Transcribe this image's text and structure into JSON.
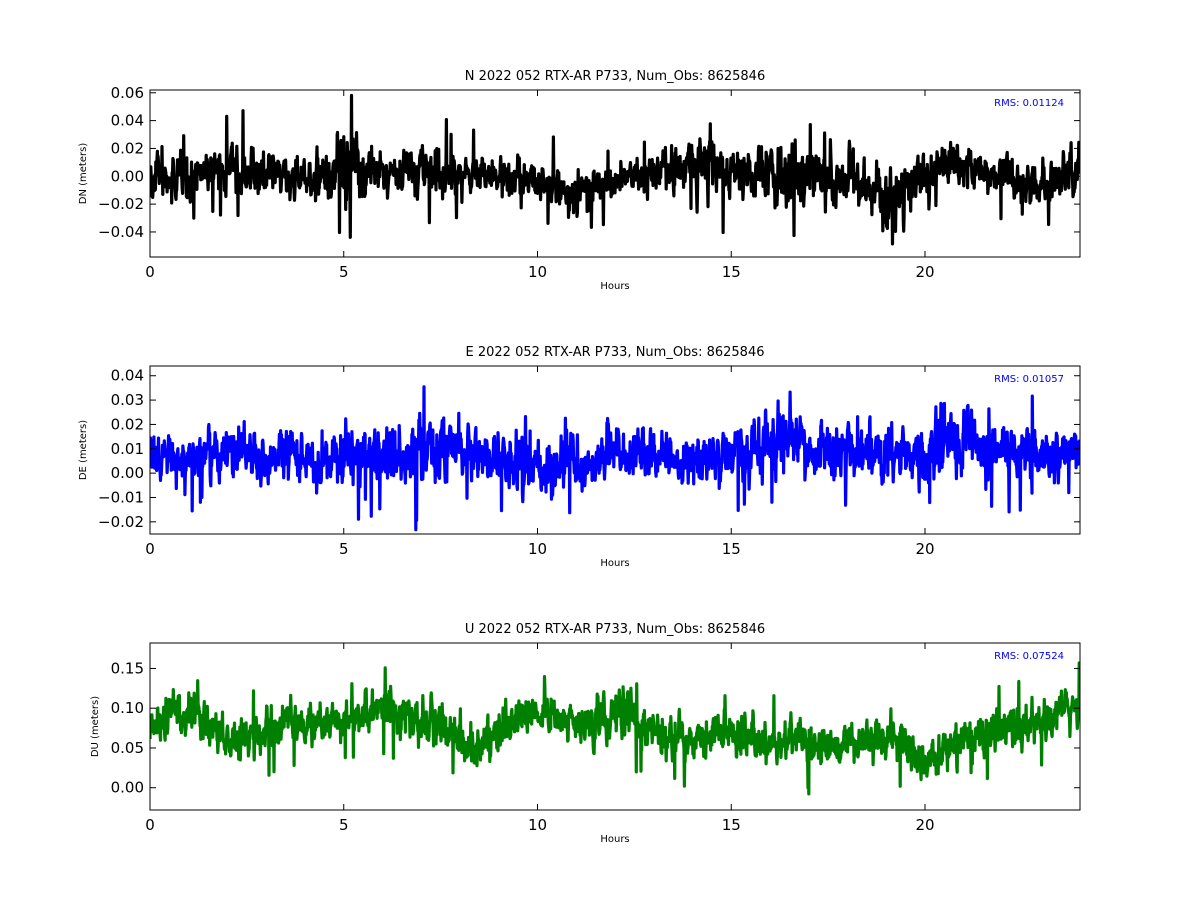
{
  "chart_data": [
    {
      "type": "line",
      "title": "N 2022 052 RTX-AR  P733, Num_Obs: 8625846",
      "xlabel": "Hours",
      "ylabel": "DN (meters)",
      "xlim": [
        0,
        24
      ],
      "ylim": [
        -0.058,
        0.062
      ],
      "xticks": [
        0,
        5,
        10,
        15,
        20
      ],
      "yticks": [
        -0.04,
        -0.02,
        0.0,
        0.02,
        0.04,
        0.06
      ],
      "ytick_labels": [
        "−0.04",
        "−0.02",
        "0.00",
        "0.02",
        "0.04",
        "0.06"
      ],
      "annotation": "RMS:  0.01124",
      "annotation_color": "#0000ff",
      "series": [
        {
          "color": "#000000",
          "x": [
            0,
            0.5,
            1,
            1.5,
            2,
            2.5,
            3,
            3.5,
            4,
            4.5,
            5,
            5.5,
            6,
            6.5,
            7,
            7.5,
            8,
            8.5,
            9,
            9.5,
            10,
            10.5,
            11,
            11.5,
            12,
            12.5,
            13,
            13.5,
            14,
            14.5,
            15,
            15.5,
            16,
            16.5,
            17,
            17.5,
            18,
            18.5,
            19,
            19.5,
            20,
            20.5,
            21,
            21.5,
            22,
            22.5,
            23,
            23.5,
            24
          ],
          "center": [
            0.0,
            -0.003,
            0.0,
            0.004,
            0.006,
            0.006,
            0.002,
            -0.002,
            0.001,
            0.0,
            0.006,
            0.003,
            0.0,
            0.005,
            0.008,
            0.006,
            0.002,
            0.001,
            0.0,
            -0.002,
            -0.004,
            -0.008,
            -0.01,
            -0.008,
            -0.002,
            0.0,
            0.002,
            0.005,
            0.008,
            0.01,
            0.004,
            0.0,
            0.002,
            0.003,
            0.0,
            -0.002,
            -0.004,
            -0.006,
            -0.015,
            -0.01,
            0.0,
            0.012,
            0.008,
            0.002,
            0.003,
            -0.002,
            -0.006,
            0.0,
            0.004
          ],
          "spread": [
            0.022,
            0.02,
            0.02,
            0.022,
            0.025,
            0.024,
            0.02,
            0.02,
            0.018,
            0.024,
            0.038,
            0.032,
            0.02,
            0.022,
            0.026,
            0.024,
            0.02,
            0.02,
            0.018,
            0.018,
            0.02,
            0.022,
            0.022,
            0.02,
            0.018,
            0.018,
            0.02,
            0.022,
            0.024,
            0.035,
            0.024,
            0.022,
            0.035,
            0.036,
            0.026,
            0.024,
            0.022,
            0.026,
            0.034,
            0.03,
            0.024,
            0.026,
            0.024,
            0.02,
            0.02,
            0.02,
            0.022,
            0.02,
            0.02
          ]
        }
      ]
    },
    {
      "type": "line",
      "title": "E 2022 052 RTX-AR  P733, Num_Obs: 8625846",
      "xlabel": "Hours",
      "ylabel": "DE (meters)",
      "xlim": [
        0,
        24
      ],
      "ylim": [
        -0.025,
        0.044
      ],
      "xticks": [
        0,
        5,
        10,
        15,
        20
      ],
      "yticks": [
        -0.02,
        -0.01,
        0.0,
        0.01,
        0.02,
        0.03,
        0.04
      ],
      "ytick_labels": [
        "−0.02",
        "−0.01",
        "0.00",
        "0.01",
        "0.02",
        "0.03",
        "0.04"
      ],
      "annotation": "RMS:  0.01057",
      "annotation_color": "#0000ff",
      "series": [
        {
          "color": "#0000ff",
          "x": [
            0,
            0.5,
            1,
            1.5,
            2,
            2.5,
            3,
            3.5,
            4,
            4.5,
            5,
            5.5,
            6,
            6.5,
            7,
            7.5,
            8,
            8.5,
            9,
            9.5,
            10,
            10.5,
            11,
            11.5,
            12,
            12.5,
            13,
            13.5,
            14,
            14.5,
            15,
            15.5,
            16,
            16.5,
            17,
            17.5,
            18,
            18.5,
            19,
            19.5,
            20,
            20.5,
            21,
            21.5,
            22,
            22.5,
            23,
            23.5,
            24
          ],
          "center": [
            0.008,
            0.007,
            0.006,
            0.008,
            0.009,
            0.008,
            0.006,
            0.007,
            0.006,
            0.007,
            0.006,
            0.007,
            0.008,
            0.009,
            0.01,
            0.01,
            0.009,
            0.008,
            0.006,
            0.004,
            0.002,
            0.003,
            0.004,
            0.003,
            0.01,
            0.008,
            0.007,
            0.006,
            0.004,
            0.008,
            0.009,
            0.01,
            0.012,
            0.016,
            0.01,
            0.008,
            0.007,
            0.006,
            0.007,
            0.008,
            0.01,
            0.014,
            0.012,
            0.01,
            0.009,
            0.008,
            0.007,
            0.009,
            0.01
          ],
          "spread": [
            0.014,
            0.014,
            0.013,
            0.016,
            0.015,
            0.014,
            0.014,
            0.016,
            0.014,
            0.015,
            0.016,
            0.015,
            0.016,
            0.018,
            0.02,
            0.018,
            0.017,
            0.016,
            0.015,
            0.016,
            0.016,
            0.015,
            0.015,
            0.014,
            0.013,
            0.013,
            0.013,
            0.014,
            0.015,
            0.015,
            0.015,
            0.016,
            0.018,
            0.02,
            0.016,
            0.015,
            0.014,
            0.014,
            0.016,
            0.016,
            0.018,
            0.02,
            0.02,
            0.016,
            0.015,
            0.015,
            0.015,
            0.014,
            0.014
          ]
        }
      ]
    },
    {
      "type": "line",
      "title": "U 2022 052 RTX-AR  P733, Num_Obs: 8625846",
      "xlabel": "Hours",
      "ylabel": "DU (meters)",
      "xlim": [
        0,
        24
      ],
      "ylim": [
        -0.028,
        0.182
      ],
      "xticks": [
        0,
        5,
        10,
        15,
        20
      ],
      "yticks": [
        0.0,
        0.05,
        0.1,
        0.15
      ],
      "ytick_labels": [
        "0.00",
        "0.05",
        "0.10",
        "0.15"
      ],
      "annotation": "RMS:  0.07524",
      "annotation_color": "#0000ff",
      "series": [
        {
          "color": "#008000",
          "x": [
            0,
            0.5,
            1,
            1.5,
            2,
            2.5,
            3,
            3.5,
            4,
            4.5,
            5,
            5.5,
            6,
            6.5,
            7,
            7.5,
            8,
            8.5,
            9,
            9.5,
            10,
            10.5,
            11,
            11.5,
            12,
            12.5,
            13,
            13.5,
            14,
            14.5,
            15,
            15.5,
            16,
            16.5,
            17,
            17.5,
            18,
            18.5,
            19,
            19.5,
            20,
            20.5,
            21,
            21.5,
            22,
            22.5,
            23,
            23.5,
            24
          ],
          "center": [
            0.075,
            0.1,
            0.09,
            0.08,
            0.06,
            0.06,
            0.07,
            0.085,
            0.085,
            0.08,
            0.085,
            0.09,
            0.1,
            0.09,
            0.085,
            0.085,
            0.06,
            0.05,
            0.075,
            0.09,
            0.095,
            0.09,
            0.08,
            0.085,
            0.095,
            0.09,
            0.07,
            0.06,
            0.06,
            0.065,
            0.07,
            0.06,
            0.055,
            0.06,
            0.055,
            0.05,
            0.055,
            0.06,
            0.06,
            0.055,
            0.03,
            0.045,
            0.06,
            0.07,
            0.08,
            0.075,
            0.08,
            0.095,
            0.1
          ],
          "spread": [
            0.04,
            0.045,
            0.04,
            0.035,
            0.035,
            0.035,
            0.04,
            0.04,
            0.035,
            0.035,
            0.035,
            0.035,
            0.04,
            0.035,
            0.04,
            0.04,
            0.035,
            0.035,
            0.035,
            0.035,
            0.035,
            0.035,
            0.035,
            0.04,
            0.045,
            0.045,
            0.035,
            0.035,
            0.035,
            0.035,
            0.04,
            0.04,
            0.035,
            0.04,
            0.04,
            0.035,
            0.035,
            0.035,
            0.035,
            0.035,
            0.04,
            0.035,
            0.035,
            0.035,
            0.04,
            0.035,
            0.035,
            0.04,
            0.04
          ]
        }
      ]
    }
  ]
}
